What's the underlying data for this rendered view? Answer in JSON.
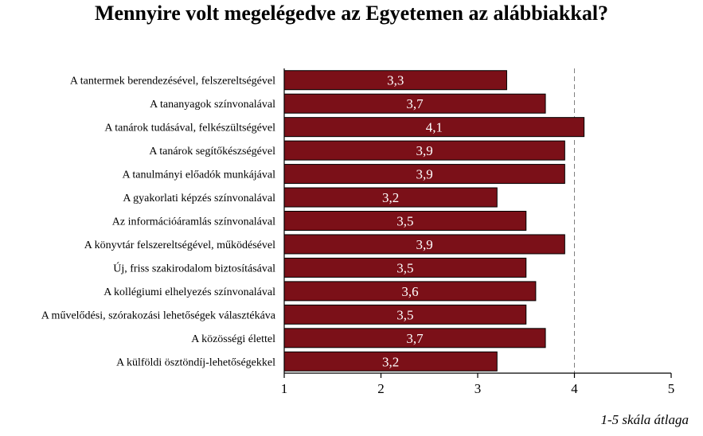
{
  "chart_data": {
    "type": "bar",
    "orientation": "horizontal",
    "title": "Mennyire volt megelégedve az Egyetemen az alábbiakkal?",
    "categories": [
      "A tantermek berendezésével, felszereltségével",
      "A tananyagok színvonalával",
      "A tanárok tudásával, felkészültségével",
      "A tanárok segítőkészségével",
      "A tanulmányi előadók munkájával",
      "A gyakorlati képzés színvonalával",
      "Az információáramlás színvonalával",
      "A könyvtár felszereltségével, működésével",
      "Új, friss szakirodalom biztosításával",
      "A kollégiumi elhelyezés színvonalával",
      "A művelődési, szórakozási lehetőségek választékáva",
      "A közösségi élettel",
      "A külföldi ösztöndíj-lehetőségekkel"
    ],
    "values": [
      3.3,
      3.7,
      4.1,
      3.9,
      3.9,
      3.2,
      3.5,
      3.9,
      3.5,
      3.6,
      3.5,
      3.7,
      3.2
    ],
    "value_labels": [
      "3,3",
      "3,7",
      "4,1",
      "3,9",
      "3,9",
      "3,2",
      "3,5",
      "3,9",
      "3,5",
      "3,6",
      "3,5",
      "3,7",
      "3,2"
    ],
    "xlim": [
      1,
      5
    ],
    "x_ticks": [
      "1",
      "2",
      "3",
      "4",
      "5"
    ],
    "reference_line": 4,
    "grid": false,
    "note": "1-5 skála átlaga",
    "bar_color": "#7b1018"
  }
}
